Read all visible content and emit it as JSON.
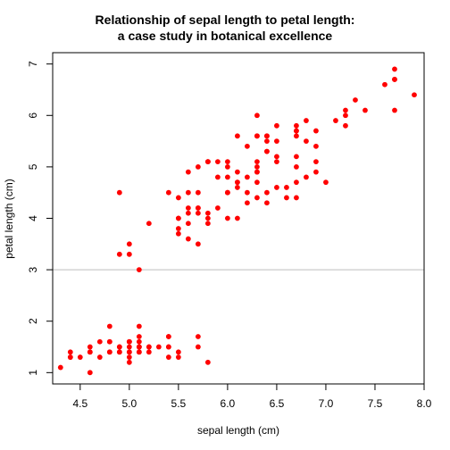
{
  "chart_data": {
    "type": "scatter",
    "title_lines": [
      "Relationship of sepal length to petal length:",
      "a case study in botanical excellence"
    ],
    "xlabel": "sepal length (cm)",
    "ylabel": "petal length (cm)",
    "xlim": [
      4.22,
      8.0
    ],
    "ylim": [
      0.78,
      7.22
    ],
    "x_ticks": [
      4.5,
      5.0,
      5.5,
      6.0,
      6.5,
      7.0,
      7.5,
      8.0
    ],
    "x_tick_labels": [
      "4.5",
      "5.0",
      "5.5",
      "6.0",
      "6.5",
      "7.0",
      "7.5",
      "8.0"
    ],
    "y_ticks": [
      1,
      2,
      3,
      4,
      5,
      6,
      7
    ],
    "y_tick_labels": [
      "1",
      "2",
      "3",
      "4",
      "5",
      "6",
      "7"
    ],
    "reference_line_y": 3,
    "grid": false,
    "colors": {
      "points": "#ff0000",
      "reference_line": "#bebebe",
      "axes": "#000000"
    },
    "x": [
      5.1,
      4.9,
      4.7,
      4.6,
      5.0,
      5.4,
      4.6,
      5.0,
      4.4,
      4.9,
      5.4,
      4.8,
      4.8,
      4.3,
      5.8,
      5.7,
      5.4,
      5.1,
      5.7,
      5.1,
      5.4,
      5.1,
      4.6,
      5.1,
      4.8,
      5.0,
      5.0,
      5.2,
      5.2,
      4.7,
      4.8,
      5.4,
      5.2,
      5.5,
      4.9,
      5.0,
      5.5,
      4.9,
      4.4,
      5.1,
      5.0,
      4.5,
      4.4,
      5.0,
      5.1,
      4.8,
      5.1,
      4.6,
      5.3,
      5.0,
      7.0,
      6.4,
      6.9,
      5.5,
      6.5,
      5.7,
      6.3,
      4.9,
      6.6,
      5.2,
      5.0,
      5.9,
      6.0,
      6.1,
      5.6,
      6.7,
      5.6,
      5.8,
      6.2,
      5.6,
      5.9,
      6.1,
      6.3,
      6.1,
      6.4,
      6.6,
      6.8,
      6.7,
      6.0,
      5.7,
      5.5,
      5.5,
      5.8,
      6.0,
      5.4,
      6.0,
      6.7,
      6.3,
      5.6,
      5.5,
      5.5,
      6.1,
      5.8,
      5.0,
      5.6,
      5.7,
      5.7,
      6.2,
      5.1,
      5.7,
      6.3,
      5.8,
      7.1,
      6.3,
      6.5,
      7.6,
      4.9,
      7.3,
      6.7,
      7.2,
      6.5,
      6.4,
      6.8,
      5.7,
      5.8,
      6.4,
      6.5,
      7.7,
      7.7,
      6.0,
      6.9,
      5.6,
      7.7,
      6.3,
      6.7,
      7.2,
      6.2,
      6.1,
      6.4,
      7.2,
      7.4,
      7.9,
      6.4,
      6.3,
      6.1,
      7.7,
      6.3,
      6.4,
      6.0,
      6.9,
      6.7,
      6.9,
      5.8,
      6.8,
      6.7,
      6.7,
      6.3,
      6.5,
      6.2,
      5.9
    ],
    "y": [
      1.4,
      1.4,
      1.3,
      1.5,
      1.4,
      1.7,
      1.4,
      1.5,
      1.4,
      1.5,
      1.5,
      1.6,
      1.4,
      1.1,
      1.2,
      1.5,
      1.3,
      1.4,
      1.7,
      1.5,
      1.7,
      1.5,
      1.0,
      1.7,
      1.9,
      1.6,
      1.6,
      1.5,
      1.4,
      1.6,
      1.6,
      1.5,
      1.5,
      1.4,
      1.5,
      1.2,
      1.3,
      1.4,
      1.3,
      1.5,
      1.3,
      1.3,
      1.3,
      1.6,
      1.9,
      1.4,
      1.6,
      1.4,
      1.5,
      1.4,
      4.7,
      4.5,
      4.9,
      4.0,
      4.6,
      4.5,
      4.7,
      3.3,
      4.6,
      3.9,
      3.5,
      4.2,
      4.0,
      4.7,
      3.6,
      4.4,
      4.5,
      4.1,
      4.5,
      3.9,
      4.8,
      4.0,
      4.9,
      4.7,
      4.3,
      4.4,
      4.8,
      5.0,
      4.5,
      3.5,
      3.8,
      3.7,
      3.9,
      5.1,
      4.5,
      4.5,
      4.7,
      4.4,
      4.1,
      4.0,
      4.4,
      4.6,
      4.0,
      3.3,
      4.2,
      4.2,
      4.2,
      4.3,
      3.0,
      4.1,
      6.0,
      5.1,
      5.9,
      5.6,
      5.8,
      6.6,
      4.5,
      6.3,
      5.8,
      6.1,
      5.1,
      5.3,
      5.5,
      5.0,
      5.1,
      5.3,
      5.5,
      6.7,
      6.9,
      5.0,
      5.7,
      4.9,
      6.7,
      4.9,
      5.7,
      6.0,
      4.8,
      4.9,
      5.6,
      5.8,
      6.1,
      6.4,
      5.6,
      5.1,
      5.6,
      6.1,
      5.6,
      5.5,
      4.8,
      5.4,
      5.6,
      5.1,
      5.1,
      5.9,
      5.7,
      5.2,
      5.0,
      5.2,
      5.4,
      5.1
    ]
  }
}
